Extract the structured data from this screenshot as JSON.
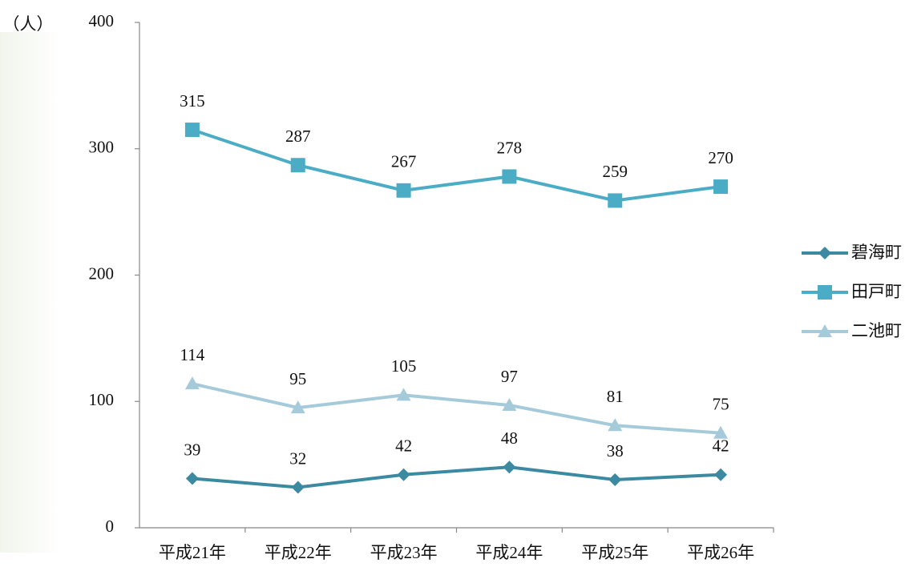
{
  "chart_data": {
    "type": "line",
    "y_label": "（人）",
    "categories": [
      "平成21年",
      "平成22年",
      "平成23年",
      "平成24年",
      "平成25年",
      "平成26年"
    ],
    "series": [
      {
        "name": "碧海町",
        "color": "#3b8aa1",
        "marker": "diamond",
        "values": [
          39,
          32,
          42,
          48,
          38,
          42
        ]
      },
      {
        "name": "田戸町",
        "color": "#4bacc6",
        "marker": "square",
        "values": [
          315,
          287,
          267,
          278,
          259,
          270
        ]
      },
      {
        "name": "二池町",
        "color": "#a5cbdb",
        "marker": "triangle",
        "values": [
          114,
          95,
          105,
          97,
          81,
          75
        ]
      }
    ],
    "ylim": [
      0,
      400
    ],
    "yticks": [
      0,
      100,
      200,
      300,
      400
    ],
    "grid": false,
    "legend": "right"
  }
}
